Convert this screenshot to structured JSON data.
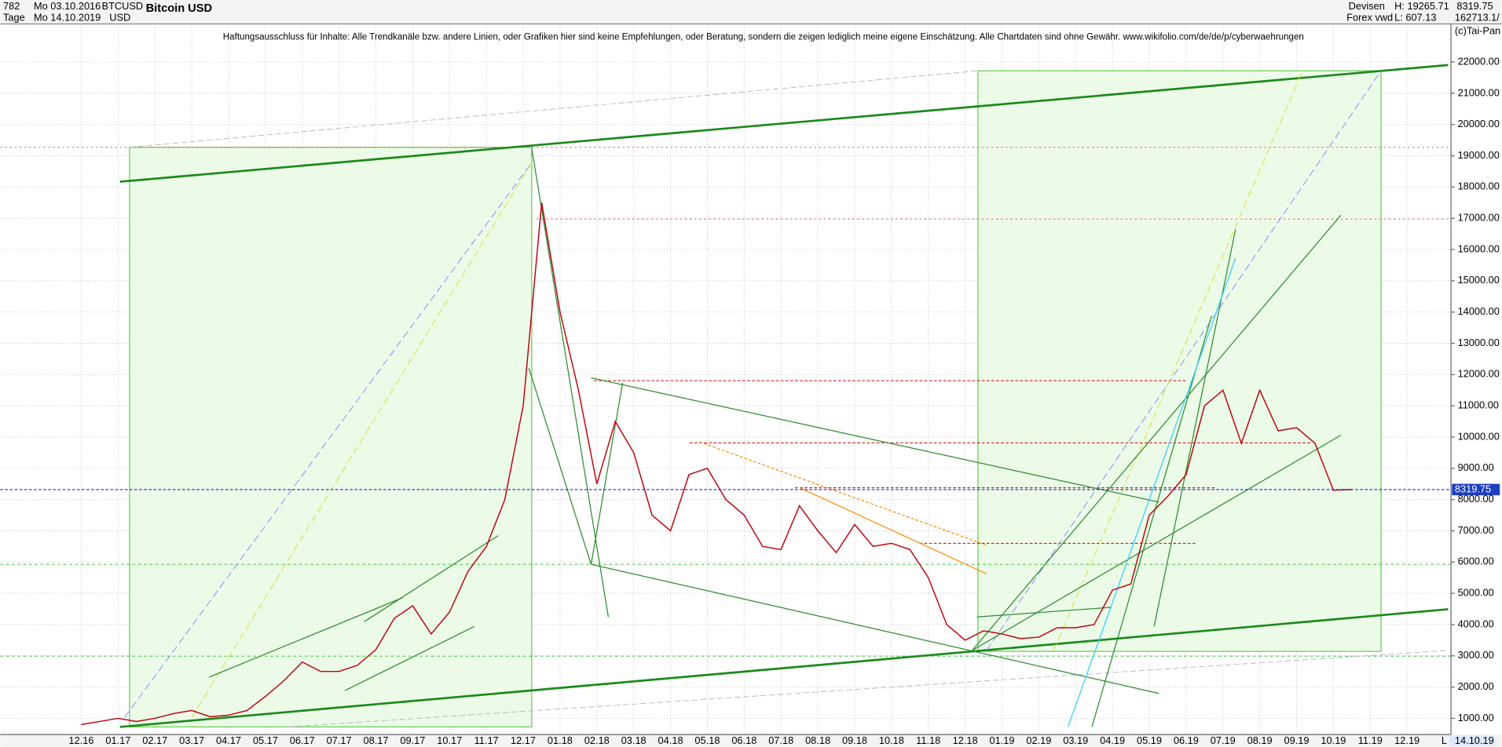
{
  "chart_data": {
    "type": "line",
    "title": "Bitcoin USD",
    "period": "782",
    "interval": "Tage",
    "start_date": "Mo 03.10.2016",
    "end_date": "Mo 14.10.2019",
    "symbol": "BTCUSD",
    "currency": "USD",
    "exchange": "Devisen",
    "source": "Forex vwd",
    "high_label": "H: 19265.71",
    "low_label": "L: 607.13",
    "volume": "162713.1/",
    "copyright": "(c)Tai-Pan",
    "disclaimer": "Haftungsausschluss für Inhalte: Alle Trendkanäle bzw. andere Linien, oder Grafiken hier sind keine Empfehlungen, oder Beratung, sondern die zeigen lediglich meine eigene Einschätzung. Alle Chartdaten sind ohne Gewähr.  www.wikifolio.com/de/de/p/cyberwaehrungen",
    "date_marker": "14.10.19",
    "axis_end": "L",
    "last_price": 8319.75,
    "color": "#c0000c",
    "categories": [
      "12.16",
      null,
      "01.17",
      null,
      "02.17",
      null,
      "03.17",
      null,
      "04.17",
      null,
      "05.17",
      null,
      "06.17",
      null,
      "07.17",
      null,
      "08.17",
      null,
      "09.17",
      null,
      "10.17",
      null,
      "11.17",
      null,
      "12.17",
      null,
      "01.18",
      null,
      "02.18",
      null,
      "03.18",
      null,
      "04.18",
      null,
      "05.18",
      null,
      "06.18",
      null,
      "07.18",
      null,
      "08.18",
      null,
      "09.18",
      null,
      "10.18",
      null,
      "11.18",
      null,
      "12.18",
      null,
      "01.19",
      null,
      "02.19",
      null,
      "03.19",
      null,
      "04.19",
      null,
      "05.19",
      null,
      "06.19",
      null,
      "07.19",
      null,
      "08.19",
      null,
      "09.19",
      null,
      "10.19",
      null,
      "11.19",
      null,
      "12.19",
      null
    ],
    "values": [
      800,
      900,
      1000,
      900,
      1000,
      1150,
      1250,
      1050,
      1100,
      1250,
      1700,
      2200,
      2800,
      2500,
      2500,
      2700,
      3200,
      4200,
      4600,
      3700,
      4400,
      5700,
      6500,
      8000,
      11000,
      17500,
      14000,
      11500,
      8500,
      10500,
      9500,
      7500,
      7000,
      8800,
      9000,
      8000,
      7500,
      6500,
      6400,
      7800,
      7000,
      6300,
      7200,
      6500,
      6600,
      6400,
      5500,
      4000,
      3500,
      3800,
      3700,
      3550,
      3600,
      3900,
      3900,
      4000,
      5100,
      5300,
      7500,
      8100,
      8800,
      11000,
      11500,
      9800,
      11500,
      10200,
      10300,
      9800,
      8300,
      8320,
      null,
      null,
      null,
      null
    ],
    "ylim": [
      480,
      23220
    ],
    "yticks": [
      {
        "value": 1000,
        "label": "1000.00"
      },
      {
        "value": 2000,
        "label": "2000.00"
      },
      {
        "value": 3000,
        "label": "3000.00"
      },
      {
        "value": 4000,
        "label": "4000.00"
      },
      {
        "value": 5000,
        "label": "5000.00"
      },
      {
        "value": 6000,
        "label": "6000.00"
      },
      {
        "value": 7000,
        "label": "7000.00"
      },
      {
        "value": 8000,
        "label": "8000.00"
      },
      {
        "value": 9000,
        "label": "9000.00"
      },
      {
        "value": 10000,
        "label": "10000.00"
      },
      {
        "value": 11000,
        "label": "11000.00"
      },
      {
        "value": 12000,
        "label": "12000.00"
      },
      {
        "value": 13000,
        "label": "13000.00"
      },
      {
        "value": 14000,
        "label": "14000.00"
      },
      {
        "value": 15000,
        "label": "15000.00"
      },
      {
        "value": 16000,
        "label": "16000.00"
      },
      {
        "value": 17000,
        "label": "17000.00"
      },
      {
        "value": 18000,
        "label": "18000.00"
      },
      {
        "value": 19000,
        "label": "19000.00"
      },
      {
        "value": 20000,
        "label": "20000.00"
      },
      {
        "value": 21000,
        "label": "21000.00"
      },
      {
        "value": 22000,
        "label": "22000.00"
      }
    ],
    "grid": true
  }
}
